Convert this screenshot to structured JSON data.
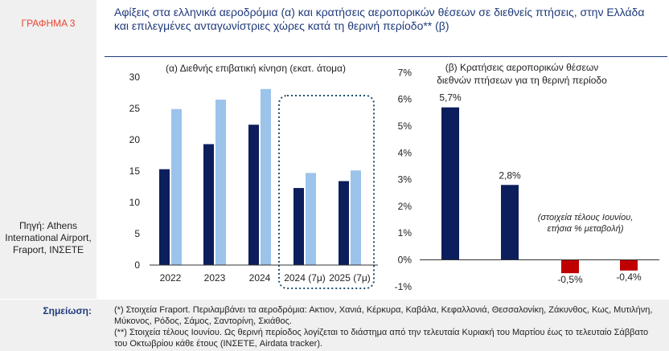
{
  "figure_label": "ΓΡΑΦΗΜΑ 3",
  "title": "Αφίξεις στα ελληνικά αεροδρόμια (α) και κρατήσεις αεροπορικών θέσεων σε διεθνείς πτήσεις, στην Ελλάδα και επιλεγμένες ανταγωνίστριες χώρες κατά τη θερινή περίοδο** (β)",
  "source": "Πηγή: Athens International Airport, Fraport, ΙΝΣΕΤΕ",
  "notes_label": "Σημείωση:",
  "notes": [
    "(*) Στοιχεία Fraport. Περιλαμβάνει τα αεροδρόμια: Ακτιον, Χανιά, Κέρκυρα, Καβάλα, Κεφαλλονιά, Θεσσαλονίκη, Ζάκυνθος, Κως, Μυτιλήνη, Μύκονος, Ρόδος, Σάμος, Σαντορίνη, Σκιάθος.",
    "(**) Στοιχεία τέλους Ιουνίου. Ως θερινή περίοδος λογίζεται το διάστημα από την τελευταία Κυριακή του Μαρτίου έως το τελευταίο Σάββατο του Οκτωβρίου κάθε έτους (ΙΝΣΕΤΕ, Airdata tracker)."
  ],
  "chart_data": [
    {
      "type": "bar",
      "title": "(α) Διεθνής επιβατική κίνηση (εκατ. άτομα)",
      "categories": [
        "2022",
        "2023",
        "2024",
        "2024 (7μ)",
        "2025 (7μ)"
      ],
      "series": [
        {
          "values": [
            15.3,
            19.3,
            22.4,
            12.3,
            13.4
          ],
          "color": "#0c1e5b"
        },
        {
          "values": [
            24.9,
            26.4,
            28.1,
            14.7,
            15.1
          ],
          "color": "#9cc3ea"
        }
      ],
      "ylim": [
        0,
        30
      ],
      "yticks": [
        0,
        5,
        10,
        15,
        20,
        25,
        30
      ],
      "highlight": [
        "2024 (7μ)",
        "2025 (7μ)"
      ]
    },
    {
      "type": "bar",
      "title_lines": [
        "(β) Κρατήσεις αεροπορικών θέσεων",
        "διεθνών πτήσεων για τη θερινή περίοδο"
      ],
      "values": [
        5.7,
        2.8,
        -0.5,
        -0.4
      ],
      "labels": [
        "5,7%",
        "2,8%",
        "-0,5%",
        "-0,4%"
      ],
      "colors": [
        "#0c1e5b",
        "#0c1e5b",
        "#c00000",
        "#c00000"
      ],
      "ylim": [
        -1,
        7
      ],
      "yticks": [
        7,
        6,
        5,
        4,
        3,
        2,
        1,
        0,
        -1
      ],
      "ytick_labels": [
        "7%",
        "6%",
        "5%",
        "4%",
        "3%",
        "2%",
        "1%",
        "0%",
        "-1%"
      ],
      "annotation_lines": [
        "(στοιχεία τέλους Ιουνίου,",
        "ετήσια % μεταβολή)"
      ]
    }
  ]
}
